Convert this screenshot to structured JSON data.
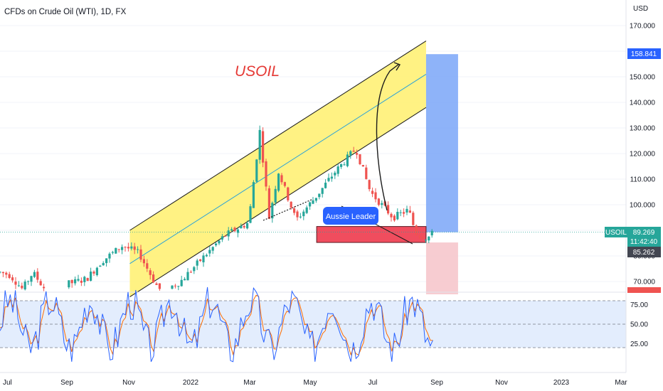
{
  "header": {
    "title": "CFDs on Crude Oil (WTI), 1D, FX"
  },
  "price_axis": {
    "currency": "USD",
    "ticks": [
      "170.000",
      "160.000",
      "150.000",
      "140.000",
      "130.000",
      "120.000",
      "110.000",
      "100.000",
      "90.000",
      "80.000",
      "70.000"
    ]
  },
  "labels": {
    "symbol": "USOIL",
    "price": "89.269",
    "countdown": "11:42:40",
    "target": "158.841",
    "stop": "85.262",
    "usoil_title": "USOIL",
    "aussie": "Aussie Leader"
  },
  "rsi_axis": {
    "ticks": [
      "75.00",
      "50.00",
      "25.00"
    ]
  },
  "x_axis": {
    "ticks": [
      "Jul",
      "Sep",
      "Nov",
      "2022",
      "Mar",
      "May",
      "Jul",
      "Sep",
      "Nov",
      "2023",
      "Mar"
    ]
  },
  "colors": {
    "up": "#26a69a",
    "down": "#ef5350",
    "channel": "#fff176",
    "target_zone": "#7aa6f8",
    "stop_zone": "#f6c6cc",
    "rsi_blue": "#2962ff",
    "rsi_orange": "#ff6d00"
  },
  "chart_data": {
    "type": "candlestick",
    "title": "CFDs on Crude Oil (WTI), 1D, FX",
    "ylabel": "USD",
    "ylim": [
      65,
      177
    ],
    "price_series": [
      {
        "x": "2021-06-25",
        "close": 74
      },
      {
        "x": "2021-07-08",
        "close": 72.5
      },
      {
        "x": "2021-07-20",
        "close": 67
      },
      {
        "x": "2021-07-30",
        "close": 73.5
      },
      {
        "x": "2021-08-20",
        "close": 62
      },
      {
        "x": "2021-09-01",
        "close": 69
      },
      {
        "x": "2021-09-20",
        "close": 71
      },
      {
        "x": "2021-10-05",
        "close": 78
      },
      {
        "x": "2021-10-25",
        "close": 84
      },
      {
        "x": "2021-11-10",
        "close": 81
      },
      {
        "x": "2021-11-26",
        "close": 69
      },
      {
        "x": "2021-12-02",
        "close": 66
      },
      {
        "x": "2021-12-20",
        "close": 70
      },
      {
        "x": "2022-01-10",
        "close": 79
      },
      {
        "x": "2022-02-01",
        "close": 88
      },
      {
        "x": "2022-02-24",
        "close": 93
      },
      {
        "x": "2022-03-07",
        "close": 129
      },
      {
        "x": "2022-03-16",
        "close": 95
      },
      {
        "x": "2022-03-25",
        "close": 113
      },
      {
        "x": "2022-04-11",
        "close": 94
      },
      {
        "x": "2022-05-02",
        "close": 104
      },
      {
        "x": "2022-05-17",
        "close": 112
      },
      {
        "x": "2022-06-08",
        "close": 122
      },
      {
        "x": "2022-06-22",
        "close": 105
      },
      {
        "x": "2022-07-14",
        "close": 95
      },
      {
        "x": "2022-07-29",
        "close": 98
      },
      {
        "x": "2022-08-05",
        "close": 89
      },
      {
        "x": "2022-08-16",
        "close": 87
      },
      {
        "x": "2022-08-23",
        "close": 89.269
      }
    ],
    "last_price": 89.269,
    "channel": {
      "lower_start": {
        "x": "2021-11-01",
        "y": 64
      },
      "lower_end": {
        "x": "2022-08-15",
        "y": 138
      },
      "width": 26
    },
    "target_zone": {
      "from": 89.269,
      "to": 158.841,
      "x_start": "2022-08-15",
      "x_end": "2022-09-15"
    },
    "stop_zone": {
      "from": 85.262,
      "to": 65,
      "x_start": "2022-08-15",
      "x_end": "2022-09-15"
    },
    "entry_zone": {
      "from": 85.262,
      "to": 91.5,
      "x_start": "2022-05-01",
      "x_end": "2022-08-15"
    },
    "rsi": {
      "ylim": [
        0,
        100
      ],
      "levels": [
        80,
        20
      ],
      "ticks": [
        75,
        50,
        25
      ]
    }
  }
}
